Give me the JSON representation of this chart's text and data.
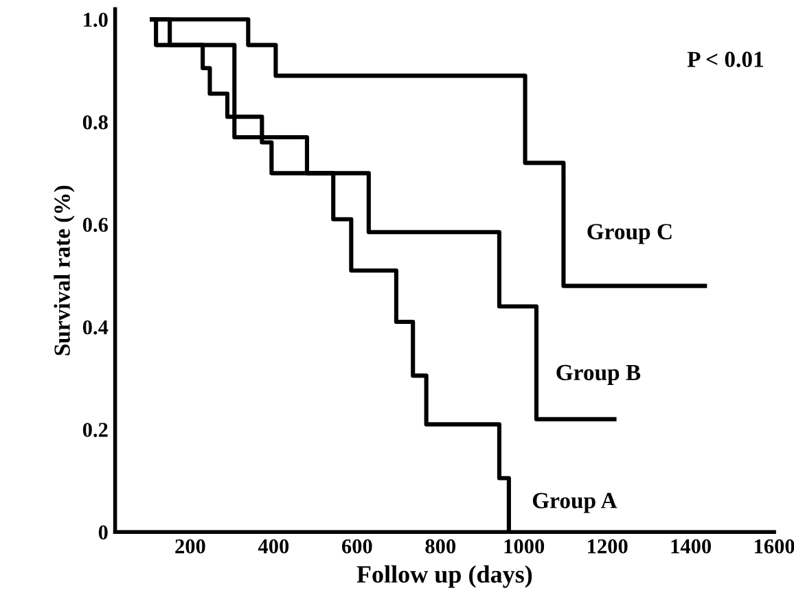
{
  "chart_data": {
    "type": "step",
    "xlabel": "Follow up (days)",
    "ylabel": "Survival rate (%)",
    "annotations": [
      "P < 0.01"
    ],
    "xlim": [
      20,
      1600
    ],
    "xticks": [
      200,
      400,
      600,
      800,
      1000,
      1200,
      1400,
      1600
    ],
    "ylim": [
      0,
      1.02
    ],
    "yticks": [
      {
        "value": 0,
        "label": "0"
      },
      0.2,
      0.4,
      0.6,
      0.8,
      {
        "value": 1,
        "label": "1.0"
      }
    ],
    "grid": false,
    "legend": false,
    "marker": "none",
    "line_style": "solid",
    "series": [
      {
        "name": "Group A",
        "color": "#000000",
        "x": [
          108,
          118,
          230,
          247,
          289,
          372,
          395,
          543,
          586,
          694,
          734,
          766,
          941,
          964
        ],
        "values": [
          1.0,
          0.95,
          0.905,
          0.855,
          0.81,
          0.76,
          0.7,
          0.61,
          0.51,
          0.41,
          0.305,
          0.21,
          0.105,
          0
        ]
      },
      {
        "name": "Group B",
        "color": "#000000",
        "x": [
          108,
          151,
          306,
          480,
          628,
          941,
          1030,
          1217
        ],
        "values": [
          1.0,
          0.95,
          0.77,
          0.7,
          0.585,
          0.44,
          0.22,
          0.22
        ]
      },
      {
        "name": "Group C",
        "color": "#000000",
        "x": [
          108,
          339,
          405,
          1003,
          1095,
          1434
        ],
        "values": [
          1.0,
          0.95,
          0.89,
          0.72,
          0.48,
          0.48
        ]
      }
    ]
  }
}
